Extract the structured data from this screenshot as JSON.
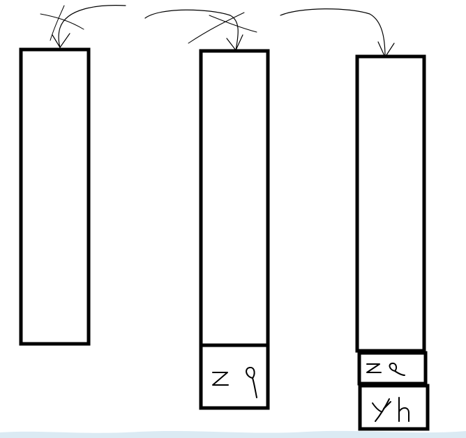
{
  "diagram": {
    "columns": [
      {
        "stack": [],
        "arrow_crossed_out": true
      },
      {
        "stack": [
          "z q"
        ],
        "arrow_crossed_out": true
      },
      {
        "stack": [
          "z q",
          "y h"
        ],
        "arrow_crossed_out": false
      }
    ]
  }
}
